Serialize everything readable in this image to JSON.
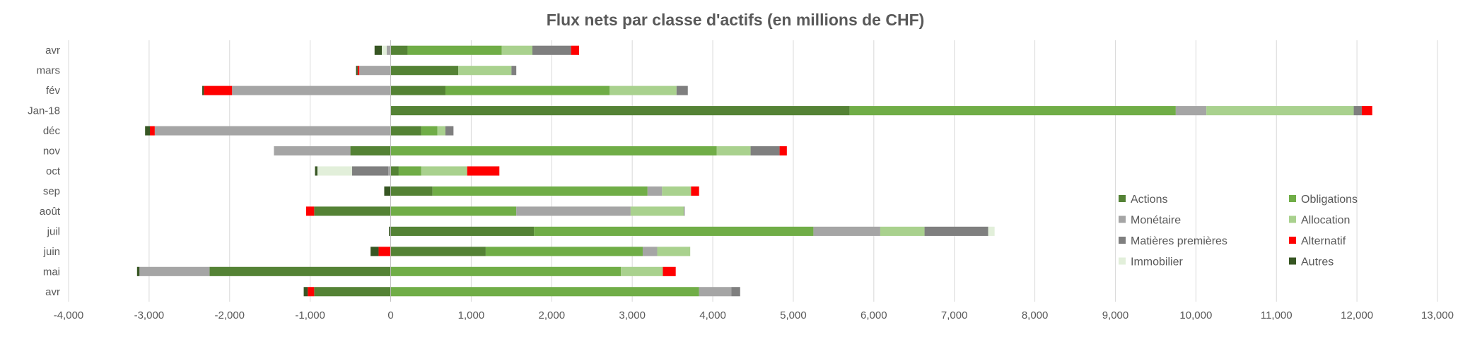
{
  "chart_data": {
    "type": "bar",
    "orientation": "horizontal",
    "stacked": true,
    "title": "Flux nets par classe d'actifs (en millions de CHF)",
    "xlabel": "",
    "ylabel": "",
    "xlim": [
      -4000,
      13000
    ],
    "xticks": [
      -4000,
      -3000,
      -2000,
      -1000,
      0,
      1000,
      2000,
      3000,
      4000,
      5000,
      6000,
      7000,
      8000,
      9000,
      10000,
      11000,
      12000,
      13000
    ],
    "xtick_labels": [
      "-4,000",
      "-3,000",
      "-2,000",
      "-1,000",
      "0",
      "1,000",
      "2,000",
      "3,000",
      "4,000",
      "5,000",
      "6,000",
      "7,000",
      "8,000",
      "9,000",
      "10,000",
      "11,000",
      "12,000",
      "13,000"
    ],
    "grid": true,
    "legend_position": "bottom-right inside",
    "categories": [
      "avr",
      "mars",
      "fév",
      "Jan-18",
      "déc",
      "nov",
      "oct",
      "sep",
      "août",
      "juil",
      "juin",
      "mai",
      "avr"
    ],
    "series": [
      {
        "name": "Actions",
        "color": "#548235",
        "values": [
          210,
          840,
          680,
          5700,
          380,
          -500,
          100,
          520,
          -950,
          1780,
          1180,
          -2250,
          -950
        ]
      },
      {
        "name": "Obligations",
        "color": "#70AD47",
        "values": [
          1170,
          0,
          2040,
          4050,
          200,
          4050,
          280,
          2670,
          1560,
          3470,
          1950,
          2860,
          3830
        ]
      },
      {
        "name": "Monétaire",
        "color": "#A5A5A5",
        "values": [
          -50,
          -390,
          -1970,
          380,
          -2930,
          -950,
          -30,
          180,
          1420,
          830,
          180,
          -870,
          400
        ]
      },
      {
        "name": "Allocation",
        "color": "#A9D18E",
        "values": [
          380,
          660,
          830,
          1830,
          100,
          420,
          570,
          360,
          660,
          550,
          410,
          520,
          0
        ]
      },
      {
        "name": "Matières premières",
        "color": "#7F7F7F",
        "values": [
          480,
          60,
          140,
          100,
          100,
          360,
          -450,
          0,
          10,
          790,
          0,
          0,
          110
        ]
      },
      {
        "name": "Alternatif",
        "color": "#FF0000",
        "values": [
          100,
          -20,
          -350,
          130,
          -60,
          90,
          400,
          100,
          -100,
          0,
          -150,
          160,
          -80
        ]
      },
      {
        "name": "Immobilier",
        "color": "#E2EFDA",
        "values": [
          -60,
          0,
          0,
          0,
          0,
          0,
          -430,
          0,
          0,
          80,
          0,
          0,
          0
        ]
      },
      {
        "name": "Autres",
        "color": "#375623",
        "values": [
          -90,
          -20,
          -20,
          0,
          -60,
          0,
          -30,
          -80,
          0,
          -20,
          -100,
          -30,
          -50
        ]
      }
    ]
  }
}
